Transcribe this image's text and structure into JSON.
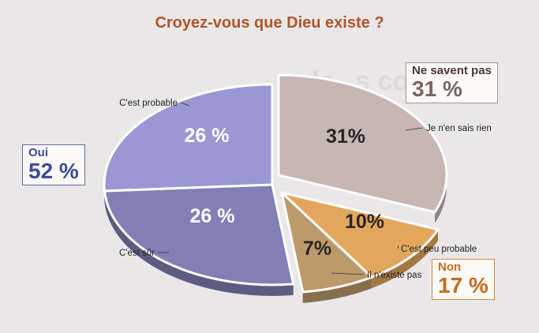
{
  "title": "Croyez-vous que Dieu existe ?",
  "colors": {
    "title": "#b3542a",
    "oui": "#3d4c9a",
    "ne_savent_pas": "#4a3a35",
    "non": "#c86a1e"
  },
  "summary_boxes": {
    "oui": {
      "label": "Oui",
      "value": "52 %"
    },
    "ne_savent_pas": {
      "label": "Ne savent pas",
      "value": "31 %"
    },
    "non": {
      "label": "Non",
      "value": "17 %"
    }
  },
  "chart_data": {
    "type": "pie",
    "title": "Croyez-vous que Dieu existe ?",
    "slices": [
      {
        "label": "Je n'en sais rien",
        "value": 31,
        "value_label": "31%",
        "group": "Ne savent pas",
        "color": "#c6b7b3",
        "label_color": "#2b2424"
      },
      {
        "label": "C'est peu probable",
        "value": 10,
        "value_label": "10%",
        "group": "Non",
        "color": "#e2a75d",
        "label_color": "#2b2424"
      },
      {
        "label": "Il n'existe pas",
        "value": 7,
        "value_label": "7%",
        "group": "Non",
        "color": "#bd9a6a",
        "label_color": "#2b2424"
      },
      {
        "label": "C'est sûr",
        "value": 26,
        "value_label": "26 %",
        "group": "Oui",
        "color": "#8080b6",
        "label_color": "#ffffff"
      },
      {
        "label": "C'est probable",
        "value": 26,
        "value_label": "26 %",
        "group": "Oui",
        "color": "#9a97d4",
        "label_color": "#ffffff"
      }
    ]
  }
}
